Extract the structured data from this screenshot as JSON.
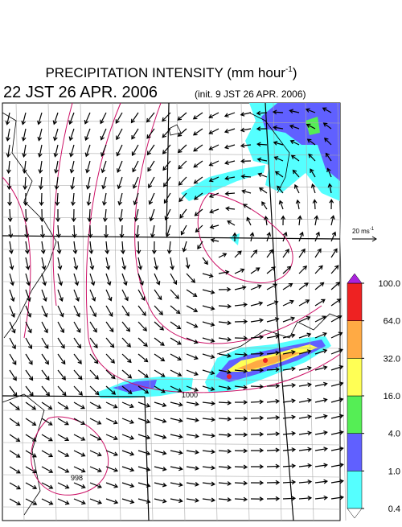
{
  "header": {
    "title": "PRECIPITATION INTENSITY (mm hour",
    "title_exponent": "-1",
    "title_close": ")",
    "time": "22 JST 26 APR. 2006",
    "init": "(init. 9 JST 26 APR. 2006)"
  },
  "wind_reference": {
    "label": "20 ms",
    "exponent": "-1"
  },
  "colorbar": {
    "levels": [
      {
        "value": 0.4,
        "label": "0.4"
      },
      {
        "value": 1,
        "label": "1.0"
      },
      {
        "value": 4,
        "label": "4.0"
      },
      {
        "value": 16,
        "label": "16.0"
      },
      {
        "value": 32,
        "label": "32.0"
      },
      {
        "value": 64,
        "label": "64.0"
      },
      {
        "value": 100,
        "label": "100.0"
      }
    ],
    "colors": [
      "#55ffff",
      "#6060ff",
      "#55ee55",
      "#ffff55",
      "#ffaa44",
      "#ee2222"
    ]
  },
  "contour_labels": [
    "1000",
    "998"
  ]
}
